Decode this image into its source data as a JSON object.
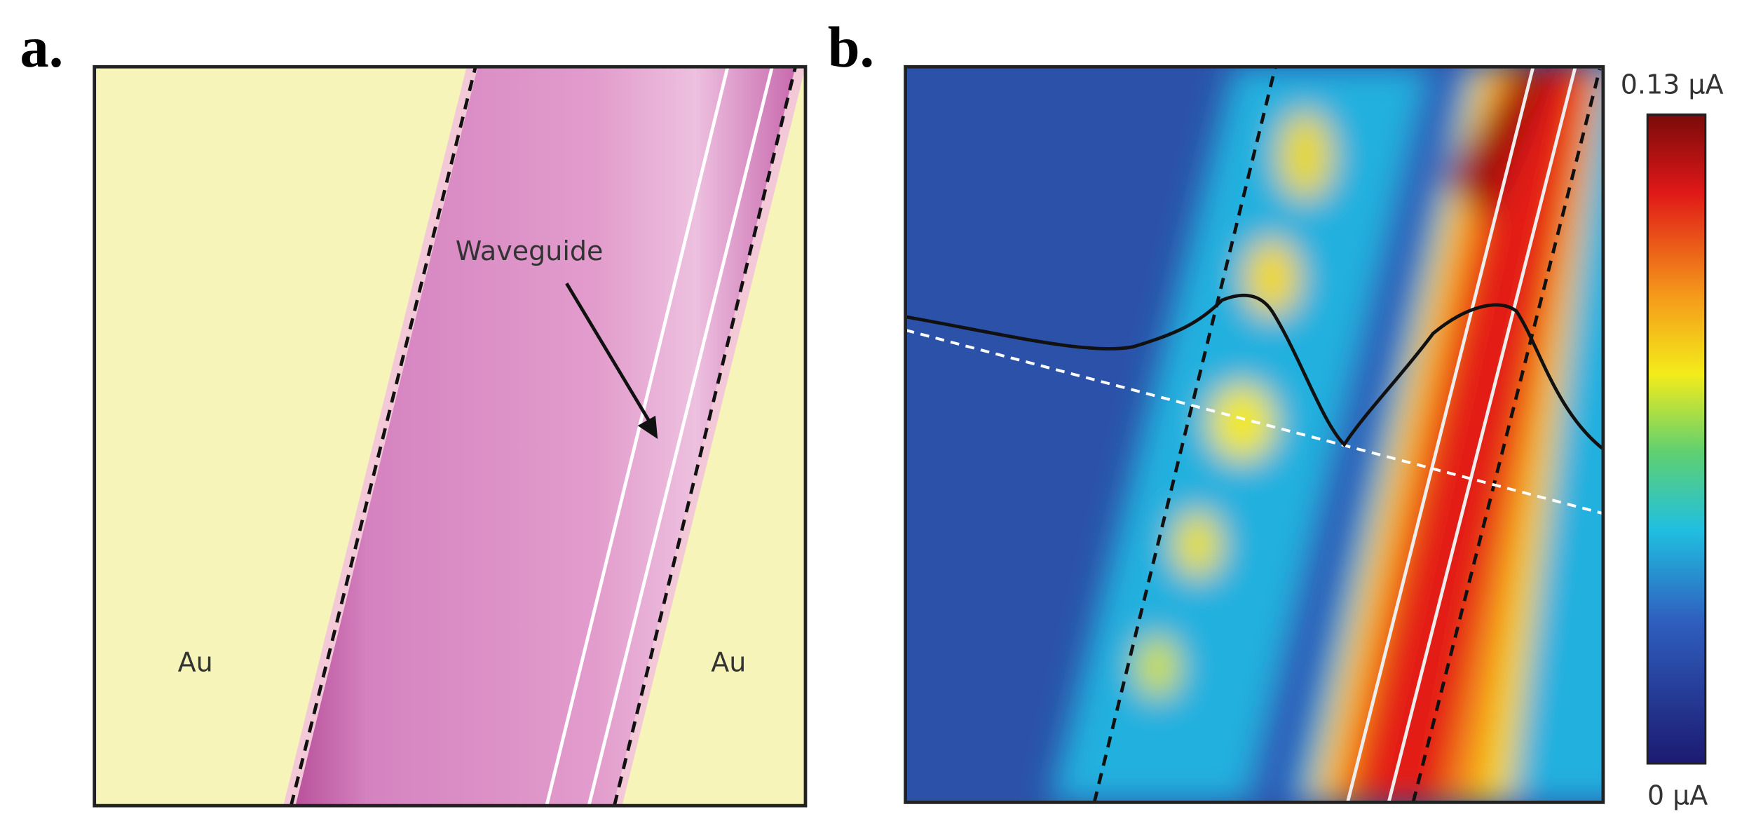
{
  "panel_a": {
    "label": "a.",
    "waveguide_label": "Waveguide",
    "left_label": "Au",
    "right_label": "Au"
  },
  "panel_b": {
    "label": "b.",
    "colorbar_max": "0.13 µA",
    "colorbar_min": "0 µA"
  }
}
